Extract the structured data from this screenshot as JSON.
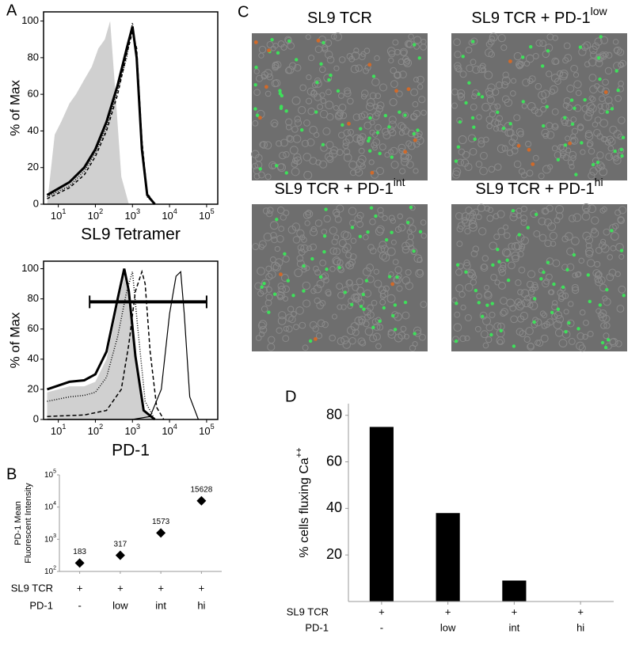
{
  "chart_data": [
    {
      "panel": "A",
      "type": "line",
      "xscale": "log",
      "xlim": [
        4,
        200000
      ],
      "ylim": [
        0,
        105
      ],
      "xticks": [
        {
          "value": 10,
          "label": "10",
          "sup": "1"
        },
        {
          "value": 100,
          "label": "10",
          "sup": "2"
        },
        {
          "value": 1000,
          "label": "10",
          "sup": "3"
        },
        {
          "value": 10000,
          "label": "10",
          "sup": "4"
        },
        {
          "value": 100000,
          "label": "10",
          "sup": "5"
        }
      ],
      "yticks": [
        0,
        20,
        40,
        60,
        80,
        100
      ],
      "ylabel": "% of Max",
      "xlabel": "SL9 Tetramer",
      "series": [
        {
          "color": "#d0d0d0",
          "fill": true,
          "x": [
            5,
            8,
            12,
            20,
            30,
            50,
            80,
            120,
            180,
            250,
            350,
            500,
            800
          ],
          "values": [
            0,
            38,
            45,
            55,
            60,
            68,
            75,
            85,
            90,
            100,
            60,
            15,
            0
          ]
        },
        {
          "color": "#000000",
          "width": 3,
          "x": [
            5,
            20,
            50,
            100,
            200,
            400,
            700,
            1000,
            1300,
            1800,
            2500,
            4000
          ],
          "values": [
            5,
            12,
            20,
            30,
            45,
            65,
            85,
            97,
            80,
            30,
            5,
            0
          ]
        },
        {
          "color": "#000000",
          "width": 1.5,
          "dash": "4,3",
          "x": [
            5,
            20,
            50,
            100,
            200,
            400,
            700,
            1000,
            1300,
            1800,
            2500,
            4000
          ],
          "values": [
            3,
            9,
            16,
            26,
            40,
            60,
            82,
            94,
            85,
            35,
            6,
            0
          ]
        },
        {
          "color": "#000000",
          "width": 1.5,
          "dash": "1,2",
          "x": [
            5,
            20,
            50,
            100,
            200,
            400,
            700,
            1000,
            1300,
            1800,
            2500,
            4000
          ],
          "values": [
            4,
            10,
            18,
            28,
            42,
            62,
            80,
            99,
            78,
            28,
            4,
            0
          ]
        }
      ]
    },
    {
      "panel": "A",
      "type": "line",
      "xscale": "log",
      "xlim": [
        4,
        200000
      ],
      "ylim": [
        0,
        105
      ],
      "xticks": [
        {
          "value": 10,
          "label": "10",
          "sup": "1"
        },
        {
          "value": 100,
          "label": "10",
          "sup": "2"
        },
        {
          "value": 1000,
          "label": "10",
          "sup": "3"
        },
        {
          "value": 10000,
          "label": "10",
          "sup": "4"
        },
        {
          "value": 100000,
          "label": "10",
          "sup": "5"
        }
      ],
      "yticks": [
        0,
        20,
        40,
        60,
        80,
        100
      ],
      "ylabel": "% of Max",
      "xlabel": "PD-1",
      "gate": {
        "x": [
          70,
          100000
        ],
        "y": 78
      },
      "series": [
        {
          "color": "#d0d0d0",
          "fill": true,
          "x": [
            5,
            20,
            50,
            100,
            200,
            400,
            600,
            800,
            1200,
            2000,
            4000
          ],
          "values": [
            18,
            22,
            22,
            25,
            40,
            75,
            95,
            80,
            40,
            5,
            0
          ]
        },
        {
          "color": "#000000",
          "width": 3,
          "x": [
            5,
            20,
            50,
            100,
            200,
            400,
            600,
            800,
            1200,
            2000,
            4000
          ],
          "values": [
            20,
            25,
            26,
            30,
            45,
            80,
            100,
            85,
            42,
            6,
            0
          ]
        },
        {
          "color": "#000000",
          "width": 1.5,
          "dash": "1,2",
          "x": [
            5,
            20,
            50,
            100,
            200,
            400,
            700,
            1000,
            1400,
            2200,
            4000
          ],
          "values": [
            12,
            15,
            16,
            18,
            28,
            55,
            85,
            98,
            60,
            12,
            0
          ]
        },
        {
          "color": "#000000",
          "width": 1.5,
          "dash": "5,3",
          "x": [
            5,
            50,
            200,
            500,
            800,
            1200,
            1800,
            2200,
            3000,
            4500,
            7000
          ],
          "values": [
            2,
            3,
            6,
            20,
            50,
            85,
            98,
            90,
            45,
            8,
            0
          ]
        },
        {
          "color": "#000000",
          "width": 1.2,
          "x": [
            5,
            1000,
            3000,
            6000,
            10000,
            15000,
            20000,
            25000,
            35000,
            60000
          ],
          "values": [
            0,
            0,
            2,
            20,
            70,
            95,
            98,
            70,
            15,
            0
          ]
        }
      ]
    },
    {
      "panel": "B",
      "type": "scatter",
      "yscale": "log",
      "ylim": [
        100,
        100000
      ],
      "yticks": [
        {
          "value": 100,
          "label": "10",
          "sup": "2"
        },
        {
          "value": 1000,
          "label": "10",
          "sup": "3"
        },
        {
          "value": 10000,
          "label": "10",
          "sup": "4"
        },
        {
          "value": 100000,
          "label": "10",
          "sup": "5"
        }
      ],
      "ylabel": [
        "PD-1 Mean",
        "Fluorescent Intensity"
      ],
      "values": [
        183,
        317,
        1573,
        15628
      ],
      "rows": [
        {
          "label": "SL9 TCR",
          "values": [
            "+",
            "+",
            "+",
            "+"
          ]
        },
        {
          "label": "PD-1",
          "values": [
            "-",
            "low",
            "int",
            "hi"
          ]
        }
      ]
    },
    {
      "panel": "D",
      "type": "bar",
      "color": "#000000",
      "ylim": [
        0,
        85
      ],
      "yticks": [
        20,
        40,
        60,
        80
      ],
      "ylabel": {
        "text": "% cells fluxing Ca",
        "sup": "++"
      },
      "values": [
        75,
        38,
        9,
        0
      ],
      "rows": [
        {
          "label": "SL9 TCR",
          "values": [
            "+",
            "+",
            "+",
            "+"
          ]
        },
        {
          "label": "PD-1",
          "values": [
            "-",
            "low",
            "int",
            "hi"
          ]
        }
      ]
    }
  ],
  "images": {
    "panel": "C",
    "panels": [
      {
        "title": "SL9 TCR"
      },
      {
        "title": "SL9 TCR + PD-1",
        "sup": "low"
      },
      {
        "title": "SL9 TCR + PD-1",
        "sup": "int"
      },
      {
        "title": "SL9 TCR + PD-1",
        "sup": "hi"
      }
    ]
  }
}
